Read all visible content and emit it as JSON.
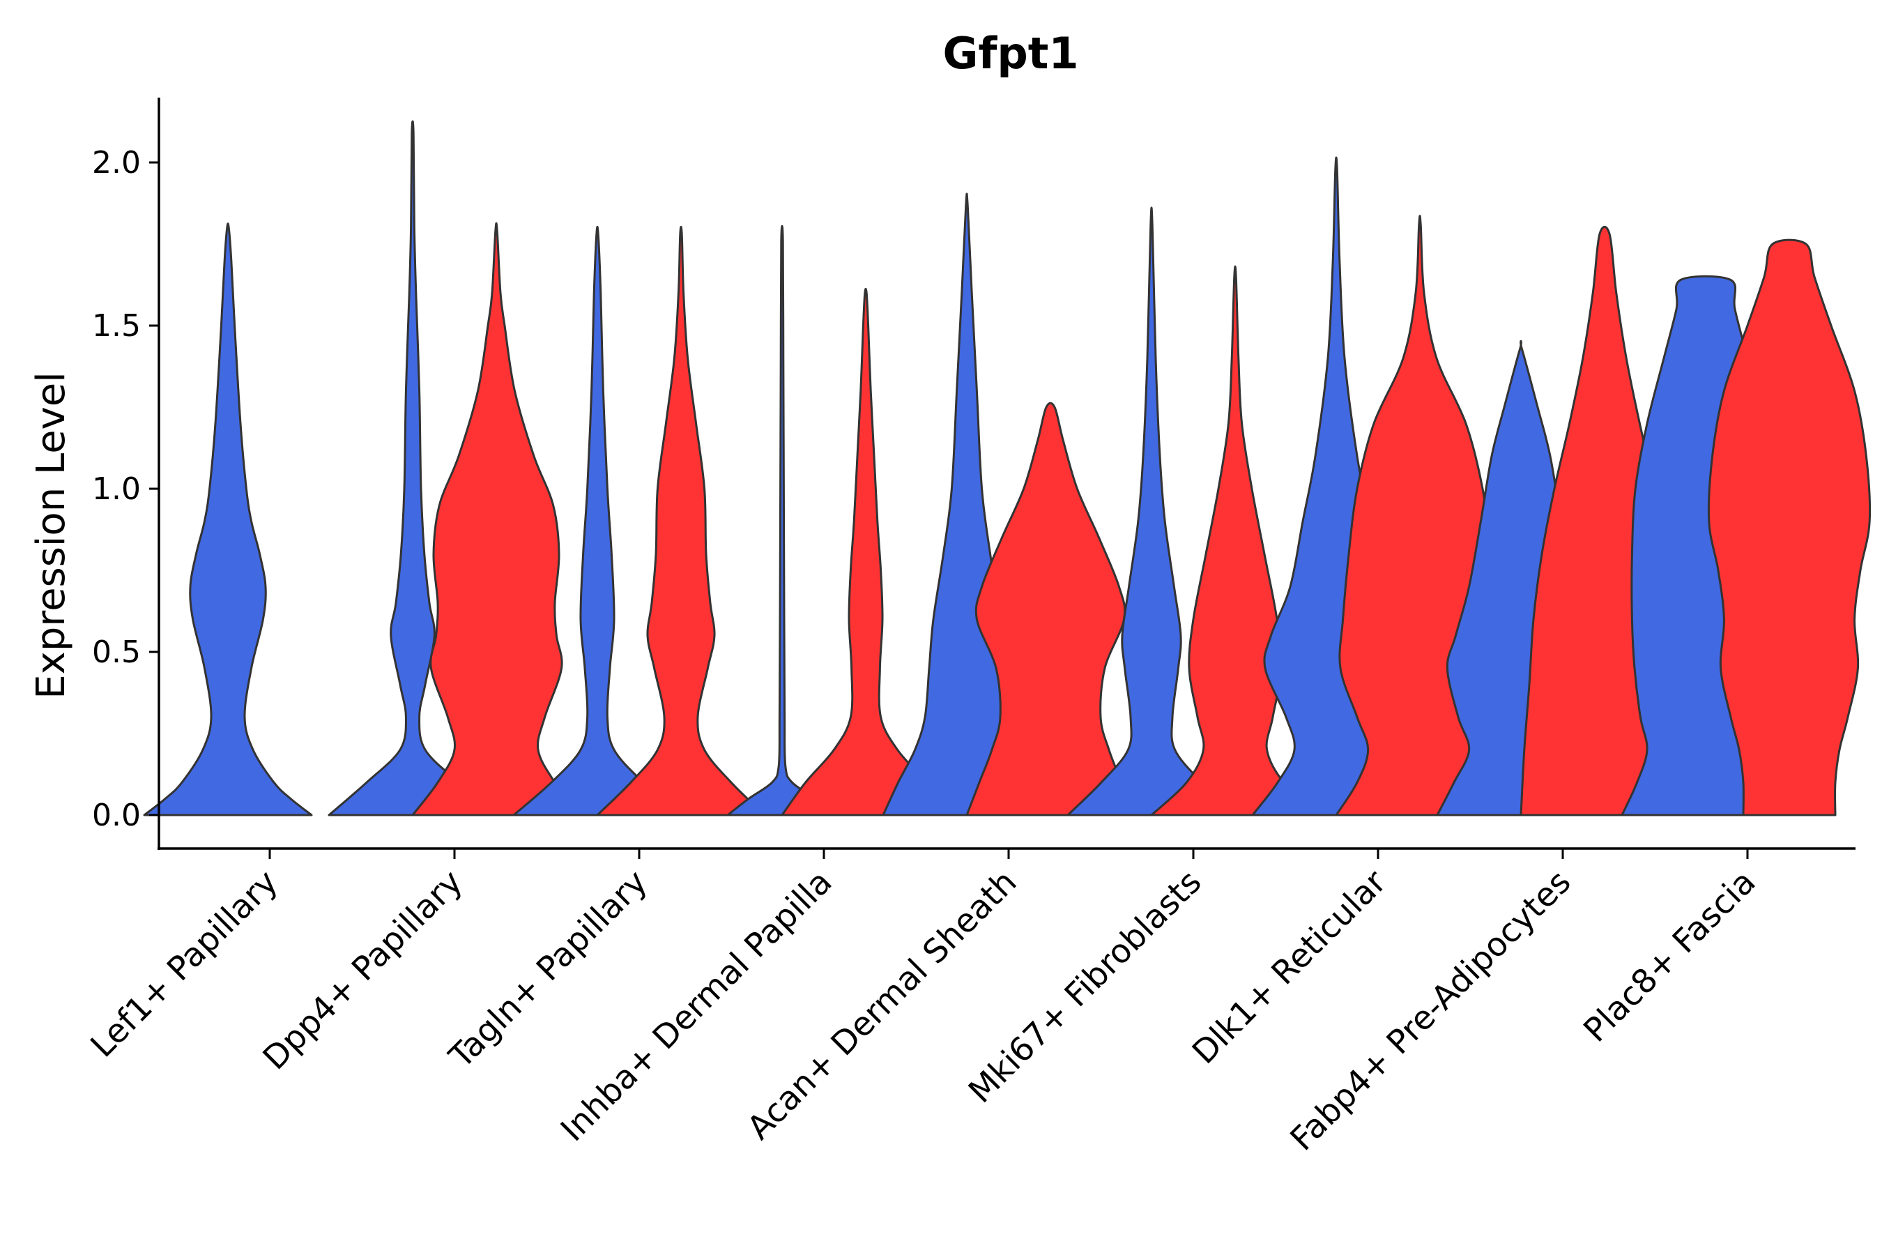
{
  "chart_data": {
    "type": "violin",
    "title": "Gfpt1",
    "xlabel": "",
    "ylabel": "Expression Level",
    "ylim": [
      -0.1,
      2.2
    ],
    "yticks": [
      0.0,
      0.5,
      1.0,
      1.5,
      2.0
    ],
    "ytick_labels": [
      "0.0",
      "0.5",
      "1.0",
      "1.5",
      "2.0"
    ],
    "grid": false,
    "legend": "none",
    "series_colors": {
      "blue": "#4169E1",
      "red": "#FF3333"
    },
    "outline_color": "#333333",
    "categories": [
      "Lef1+ Papillary",
      "Dpp4+ Papillary",
      "Tagln+ Papillary",
      "Inhba+ Dermal Papilla",
      "Acan+ Dermal Sheath",
      "Mki67+ Fibroblasts",
      "Dlk1+ Reticular",
      "Fabp4+ Pre-Adipocytes",
      "Plac8+ Fascia"
    ],
    "violins": [
      {
        "category": "Lef1+ Papillary",
        "group": "blue",
        "profile": [
          [
            0,
            1.0
          ],
          [
            0.05,
            0.75
          ],
          [
            0.1,
            0.55
          ],
          [
            0.2,
            0.3
          ],
          [
            0.3,
            0.2
          ],
          [
            0.45,
            0.28
          ],
          [
            0.6,
            0.42
          ],
          [
            0.7,
            0.45
          ],
          [
            0.8,
            0.38
          ],
          [
            0.9,
            0.28
          ],
          [
            1.0,
            0.22
          ],
          [
            1.2,
            0.15
          ],
          [
            1.5,
            0.08
          ],
          [
            1.7,
            0.04
          ],
          [
            1.8,
            0.01
          ]
        ]
      },
      {
        "category": "Dpp4+ Papillary",
        "group": "blue",
        "profile": [
          [
            0,
            1.0
          ],
          [
            0.1,
            0.55
          ],
          [
            0.2,
            0.15
          ],
          [
            0.3,
            0.08
          ],
          [
            0.4,
            0.15
          ],
          [
            0.55,
            0.26
          ],
          [
            0.65,
            0.2
          ],
          [
            0.8,
            0.14
          ],
          [
            1.0,
            0.1
          ],
          [
            1.3,
            0.08
          ],
          [
            1.6,
            0.04
          ],
          [
            1.8,
            0.02
          ],
          [
            2.09,
            0.01
          ]
        ]
      },
      {
        "category": "Dpp4+ Papillary",
        "group": "red",
        "profile": [
          [
            0,
            1.0
          ],
          [
            0.1,
            0.7
          ],
          [
            0.2,
            0.5
          ],
          [
            0.3,
            0.58
          ],
          [
            0.45,
            0.78
          ],
          [
            0.55,
            0.72
          ],
          [
            0.65,
            0.7
          ],
          [
            0.8,
            0.75
          ],
          [
            0.95,
            0.68
          ],
          [
            1.1,
            0.45
          ],
          [
            1.3,
            0.22
          ],
          [
            1.5,
            0.1
          ],
          [
            1.6,
            0.05
          ],
          [
            1.79,
            0.01
          ]
        ]
      },
      {
        "category": "Tagln+ Papillary",
        "group": "blue",
        "profile": [
          [
            0,
            1.0
          ],
          [
            0.1,
            0.55
          ],
          [
            0.2,
            0.2
          ],
          [
            0.3,
            0.12
          ],
          [
            0.45,
            0.15
          ],
          [
            0.6,
            0.2
          ],
          [
            0.8,
            0.17
          ],
          [
            1.0,
            0.12
          ],
          [
            1.3,
            0.07
          ],
          [
            1.6,
            0.04
          ],
          [
            1.78,
            0.01
          ]
        ]
      },
      {
        "category": "Tagln+ Papillary",
        "group": "red",
        "profile": [
          [
            0,
            1.0
          ],
          [
            0.1,
            0.6
          ],
          [
            0.2,
            0.28
          ],
          [
            0.3,
            0.2
          ],
          [
            0.45,
            0.32
          ],
          [
            0.55,
            0.4
          ],
          [
            0.65,
            0.35
          ],
          [
            0.8,
            0.3
          ],
          [
            1.0,
            0.28
          ],
          [
            1.2,
            0.18
          ],
          [
            1.4,
            0.08
          ],
          [
            1.6,
            0.03
          ],
          [
            1.78,
            0.01
          ]
        ]
      },
      {
        "category": "Inhba+ Dermal Papilla",
        "group": "blue",
        "profile": [
          [
            0,
            0.65
          ],
          [
            0.05,
            0.4
          ],
          [
            0.1,
            0.12
          ],
          [
            0.15,
            0.04
          ],
          [
            0.3,
            0.03
          ],
          [
            0.6,
            0.025
          ],
          [
            1.0,
            0.02
          ],
          [
            1.4,
            0.015
          ],
          [
            1.76,
            0.01
          ]
        ]
      },
      {
        "category": "Inhba+ Dermal Papilla",
        "group": "red",
        "profile": [
          [
            0,
            1.0
          ],
          [
            0.1,
            0.72
          ],
          [
            0.2,
            0.38
          ],
          [
            0.3,
            0.18
          ],
          [
            0.45,
            0.17
          ],
          [
            0.6,
            0.2
          ],
          [
            0.75,
            0.18
          ],
          [
            0.9,
            0.14
          ],
          [
            1.1,
            0.1
          ],
          [
            1.3,
            0.06
          ],
          [
            1.5,
            0.03
          ],
          [
            1.6,
            0.01
          ]
        ]
      },
      {
        "category": "Acan+ Dermal Sheath",
        "group": "blue",
        "profile": [
          [
            0,
            1.0
          ],
          [
            0.1,
            0.82
          ],
          [
            0.2,
            0.62
          ],
          [
            0.3,
            0.5
          ],
          [
            0.45,
            0.45
          ],
          [
            0.6,
            0.4
          ],
          [
            0.8,
            0.28
          ],
          [
            1.0,
            0.18
          ],
          [
            1.3,
            0.12
          ],
          [
            1.6,
            0.06
          ],
          [
            1.87,
            0.01
          ]
        ]
      },
      {
        "category": "Acan+ Dermal Sheath",
        "group": "red",
        "profile": [
          [
            0,
            1.0
          ],
          [
            0.1,
            0.85
          ],
          [
            0.2,
            0.7
          ],
          [
            0.3,
            0.6
          ],
          [
            0.45,
            0.65
          ],
          [
            0.6,
            0.88
          ],
          [
            0.7,
            0.82
          ],
          [
            0.85,
            0.58
          ],
          [
            1.0,
            0.32
          ],
          [
            1.15,
            0.15
          ],
          [
            1.25,
            0.05
          ]
        ]
      },
      {
        "category": "Mki67+ Fibroblasts",
        "group": "blue",
        "profile": [
          [
            0,
            1.0
          ],
          [
            0.1,
            0.6
          ],
          [
            0.2,
            0.28
          ],
          [
            0.3,
            0.25
          ],
          [
            0.45,
            0.32
          ],
          [
            0.55,
            0.35
          ],
          [
            0.7,
            0.27
          ],
          [
            0.9,
            0.16
          ],
          [
            1.1,
            0.1
          ],
          [
            1.4,
            0.05
          ],
          [
            1.81,
            0.01
          ]
        ]
      },
      {
        "category": "Mki67+ Fibroblasts",
        "group": "red",
        "profile": [
          [
            0,
            1.0
          ],
          [
            0.1,
            0.58
          ],
          [
            0.2,
            0.38
          ],
          [
            0.3,
            0.45
          ],
          [
            0.45,
            0.55
          ],
          [
            0.6,
            0.5
          ],
          [
            0.8,
            0.35
          ],
          [
            1.0,
            0.2
          ],
          [
            1.2,
            0.08
          ],
          [
            1.4,
            0.04
          ],
          [
            1.65,
            0.01
          ]
        ]
      },
      {
        "category": "Dlk1+ Reticular",
        "group": "blue",
        "profile": [
          [
            0,
            1.0
          ],
          [
            0.1,
            0.7
          ],
          [
            0.2,
            0.5
          ],
          [
            0.3,
            0.6
          ],
          [
            0.45,
            0.85
          ],
          [
            0.55,
            0.78
          ],
          [
            0.7,
            0.55
          ],
          [
            0.9,
            0.4
          ],
          [
            1.1,
            0.25
          ],
          [
            1.4,
            0.1
          ],
          [
            1.7,
            0.04
          ],
          [
            1.98,
            0.01
          ]
        ]
      },
      {
        "category": "Dlk1+ Reticular",
        "group": "red",
        "profile": [
          [
            0,
            1.0
          ],
          [
            0.1,
            0.75
          ],
          [
            0.2,
            0.62
          ],
          [
            0.3,
            0.75
          ],
          [
            0.45,
            0.95
          ],
          [
            0.6,
            0.92
          ],
          [
            0.8,
            0.85
          ],
          [
            1.0,
            0.75
          ],
          [
            1.2,
            0.55
          ],
          [
            1.4,
            0.2
          ],
          [
            1.6,
            0.05
          ],
          [
            1.81,
            0.01
          ]
        ]
      },
      {
        "category": "Fabp4+ Pre-Adipocytes",
        "group": "blue",
        "profile": [
          [
            0,
            1.0
          ],
          [
            0.1,
            0.8
          ],
          [
            0.2,
            0.62
          ],
          [
            0.3,
            0.75
          ],
          [
            0.45,
            0.88
          ],
          [
            0.55,
            0.78
          ],
          [
            0.7,
            0.62
          ],
          [
            0.9,
            0.48
          ],
          [
            1.1,
            0.35
          ],
          [
            1.25,
            0.2
          ],
          [
            1.43,
            0.01
          ]
        ]
      },
      {
        "category": "Fabp4+ Pre-Adipocytes",
        "group": "red",
        "profile": [
          [
            0,
            1.0
          ],
          [
            0.2,
            0.96
          ],
          [
            0.4,
            0.9
          ],
          [
            0.6,
            0.85
          ],
          [
            0.8,
            0.75
          ],
          [
            1.0,
            0.6
          ],
          [
            1.2,
            0.42
          ],
          [
            1.4,
            0.26
          ],
          [
            1.6,
            0.14
          ],
          [
            1.78,
            0.06
          ]
        ]
      },
      {
        "category": "Plac8+ Fascia",
        "group": "blue",
        "profile": [
          [
            0,
            1.0
          ],
          [
            0.1,
            0.82
          ],
          [
            0.2,
            0.7
          ],
          [
            0.3,
            0.78
          ],
          [
            0.45,
            0.85
          ],
          [
            0.6,
            0.88
          ],
          [
            0.8,
            0.88
          ],
          [
            1.0,
            0.84
          ],
          [
            1.2,
            0.7
          ],
          [
            1.4,
            0.5
          ],
          [
            1.55,
            0.35
          ],
          [
            1.64,
            0.3
          ]
        ]
      },
      {
        "category": "Plac8+ Fascia",
        "group": "red",
        "profile": [
          [
            0,
            0.55
          ],
          [
            0.1,
            0.55
          ],
          [
            0.2,
            0.6
          ],
          [
            0.3,
            0.7
          ],
          [
            0.45,
            0.82
          ],
          [
            0.6,
            0.78
          ],
          [
            0.75,
            0.85
          ],
          [
            0.9,
            0.96
          ],
          [
            1.1,
            0.92
          ],
          [
            1.3,
            0.78
          ],
          [
            1.5,
            0.5
          ],
          [
            1.65,
            0.3
          ],
          [
            1.75,
            0.2
          ]
        ]
      }
    ]
  }
}
